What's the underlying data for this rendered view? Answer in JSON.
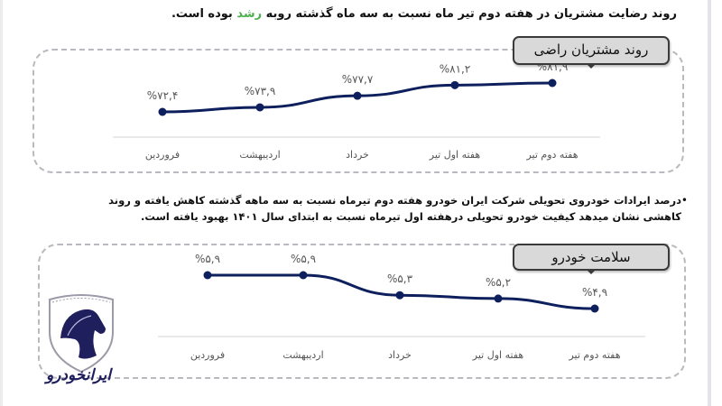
{
  "headline": {
    "text_before": "روند رضایت مشتریان در هفته دوم تیر ماه نسبت به سه ماه  گذشته روبه ",
    "accent_word": "رشد",
    "text_after": " بوده است.",
    "accent_color": "#4caf50"
  },
  "bullet": {
    "line1": "درصد ایرادات خودروی تحویلی شرکت ایران خودرو هفته دوم تیرماه نسبت به سه ماهه گذشته کاهش یافته و روند",
    "line2": "کاهشی نشان میدهد کیفیت خودرو تحویلی درهفته اول تیرماه نسبت به ابتدای سال ۱۴۰۱ بهبود یافته است."
  },
  "logo": {
    "text": "ایرانخودرو",
    "color": "#1f1f5e"
  },
  "chart_data": [
    {
      "type": "line",
      "title": "روند مشتریان راضی",
      "categories": [
        "فروردین",
        "اردیبهشت",
        "خرداد",
        "هفته اول تیر",
        "هفته دوم تیر"
      ],
      "values": [
        72.4,
        73.9,
        77.7,
        81.2,
        81.9
      ],
      "labels": [
        "%۷۲,۴",
        "%۷۳,۹",
        "%۷۷,۷",
        "%۸۱,۲",
        "%۸۱,۹"
      ],
      "xlabel": "",
      "ylabel": "",
      "grid": false,
      "legend": "none",
      "line_color": "#0d1f5c"
    },
    {
      "type": "line",
      "title": "سلامت خودرو",
      "categories": [
        "فروردین",
        "اردیبهشت",
        "خرداد",
        "هفته اول تیر",
        "هفته دوم تیر"
      ],
      "values": [
        5.9,
        5.9,
        5.3,
        5.2,
        4.9
      ],
      "labels": [
        "%۵,۹",
        "%۵,۹",
        "%۵,۳",
        "%۵,۲",
        "%۴,۹"
      ],
      "xlabel": "",
      "ylabel": "",
      "grid": false,
      "legend": "none",
      "line_color": "#0d1f5c"
    }
  ]
}
